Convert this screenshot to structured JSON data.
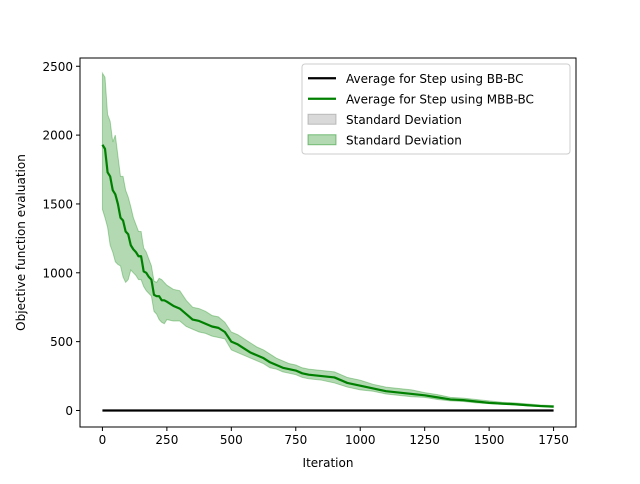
{
  "chart_data": {
    "type": "line",
    "title": "",
    "xlabel": "Iteration",
    "ylabel": "Objective function evaluation",
    "xlim": [
      -87,
      1837
    ],
    "ylim": [
      -120,
      2560
    ],
    "xticks": [
      0,
      250,
      500,
      750,
      1000,
      1250,
      1500,
      1750
    ],
    "yticks": [
      0,
      500,
      1000,
      1500,
      2000,
      2500
    ],
    "grid": false,
    "legend_position": "top-right",
    "series": [
      {
        "name": "Average for Step using BB-BC",
        "color": "#000000",
        "x": [
          0,
          1750
        ],
        "y": [
          0,
          0
        ],
        "band": {
          "name": "Standard Deviation",
          "color": "#808080",
          "lower": [
            0,
            0
          ],
          "upper": [
            0,
            0
          ]
        }
      },
      {
        "name": "Average for Step using MBB-BC",
        "color": "#008000",
        "x": [
          0,
          10,
          20,
          30,
          40,
          50,
          60,
          70,
          80,
          90,
          100,
          110,
          120,
          130,
          140,
          150,
          160,
          170,
          180,
          190,
          200,
          210,
          220,
          230,
          240,
          250,
          275,
          300,
          325,
          350,
          375,
          400,
          425,
          450,
          475,
          500,
          525,
          550,
          575,
          600,
          625,
          650,
          675,
          700,
          725,
          750,
          775,
          800,
          850,
          900,
          950,
          1000,
          1050,
          1100,
          1150,
          1200,
          1250,
          1300,
          1350,
          1400,
          1450,
          1500,
          1550,
          1600,
          1650,
          1700,
          1750
        ],
        "y": [
          1930,
          1900,
          1730,
          1700,
          1600,
          1570,
          1500,
          1400,
          1380,
          1300,
          1280,
          1200,
          1170,
          1150,
          1120,
          1120,
          1010,
          1000,
          970,
          950,
          840,
          830,
          830,
          800,
          800,
          790,
          760,
          740,
          700,
          660,
          650,
          630,
          610,
          600,
          570,
          500,
          480,
          450,
          420,
          400,
          380,
          350,
          330,
          310,
          300,
          290,
          270,
          260,
          250,
          240,
          200,
          180,
          160,
          140,
          130,
          120,
          110,
          95,
          80,
          75,
          65,
          55,
          50,
          45,
          38,
          32,
          28
        ],
        "band": {
          "name": "Standard Deviation",
          "color": "#008000",
          "lower": [
            1460,
            1400,
            1330,
            1200,
            1150,
            1080,
            1060,
            1050,
            970,
            930,
            950,
            1020,
            1000,
            980,
            950,
            950,
            900,
            870,
            850,
            830,
            720,
            700,
            660,
            640,
            630,
            660,
            650,
            650,
            610,
            590,
            570,
            560,
            540,
            530,
            520,
            440,
            420,
            400,
            380,
            360,
            340,
            310,
            300,
            280,
            270,
            260,
            240,
            230,
            220,
            200,
            170,
            150,
            140,
            120,
            110,
            100,
            95,
            80,
            70,
            65,
            55,
            50,
            45,
            40,
            34,
            28,
            24
          ],
          "upper": [
            2450,
            2420,
            2150,
            2100,
            1950,
            2000,
            1850,
            1700,
            1700,
            1600,
            1550,
            1480,
            1400,
            1350,
            1300,
            1300,
            1180,
            1150,
            1100,
            1050,
            940,
            930,
            960,
            950,
            930,
            910,
            880,
            870,
            800,
            750,
            740,
            720,
            690,
            680,
            640,
            570,
            550,
            520,
            490,
            460,
            440,
            410,
            380,
            360,
            340,
            330,
            310,
            300,
            290,
            280,
            240,
            220,
            190,
            170,
            160,
            150,
            130,
            115,
            95,
            90,
            80,
            70,
            60,
            55,
            48,
            40,
            35
          ]
        }
      }
    ]
  }
}
